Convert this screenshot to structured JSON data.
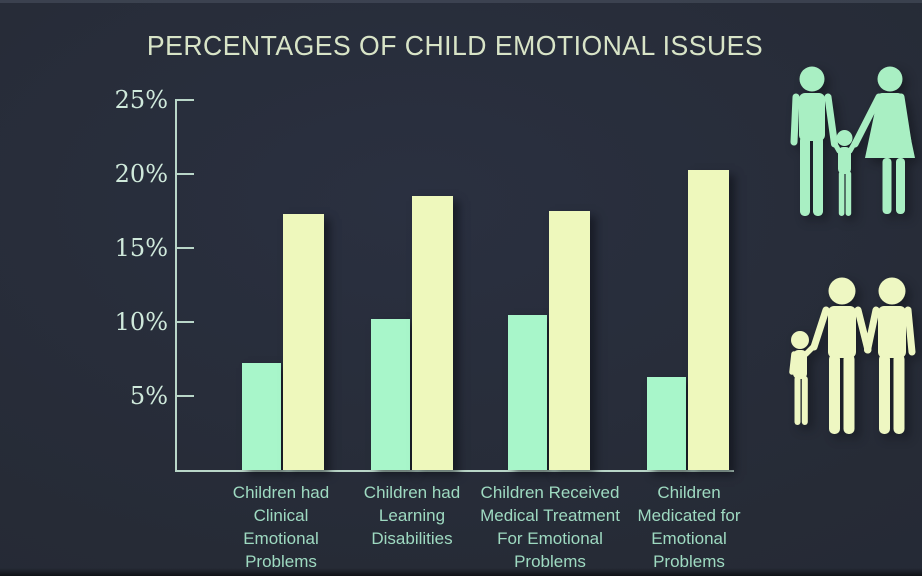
{
  "title": "PERCENTAGES OF CHILD EMOTIONAL ISSUES",
  "colors": {
    "background": "#262b36",
    "axis": "#b9d6c8",
    "title_text": "#d8e4c7",
    "ytick_text": "#cfe9db",
    "category_text": "#9edac1",
    "bar_mint": "#a8f6ca",
    "bar_pale_yellow": "#eef8bc",
    "icon_mint": "#a9efc3",
    "icon_pale_yellow": "#eef7c2"
  },
  "chart_data": {
    "type": "bar",
    "title": "PERCENTAGES OF CHILD EMOTIONAL ISSUES",
    "categories": [
      "Children had\nClinical\nEmotional\nProblems",
      "Children had\nLearning\nDisabilities",
      "Children Received\nMedical Treatment\nFor Emotional\nProblems",
      "Children\nMedicated for\nEmotional\nProblems"
    ],
    "series": [
      {
        "name": "mint-green",
        "color": "#a8f6ca",
        "values": [
          7.2,
          10.2,
          10.5,
          6.3
        ]
      },
      {
        "name": "pale-yellow",
        "color": "#eef8bc",
        "values": [
          17.3,
          18.5,
          17.5,
          20.3
        ]
      }
    ],
    "yticks": [
      {
        "label": "25%",
        "value": 25
      },
      {
        "label": "20%",
        "value": 20
      },
      {
        "label": "15%",
        "value": 15
      },
      {
        "label": "10%",
        "value": 10
      },
      {
        "label": "5%",
        "value": 5
      }
    ],
    "ylim": [
      0,
      25
    ],
    "xlabel": "",
    "ylabel": "",
    "grid": false,
    "legend": "none"
  },
  "icons": [
    {
      "name": "family-mother-father-child-icon",
      "meaning": "father, small child and mother holding hands",
      "color_key": "icon_mint"
    },
    {
      "name": "family-two-adults-child-icon",
      "meaning": "small child holding hands with two adults",
      "color_key": "icon_pale_yellow"
    }
  ]
}
